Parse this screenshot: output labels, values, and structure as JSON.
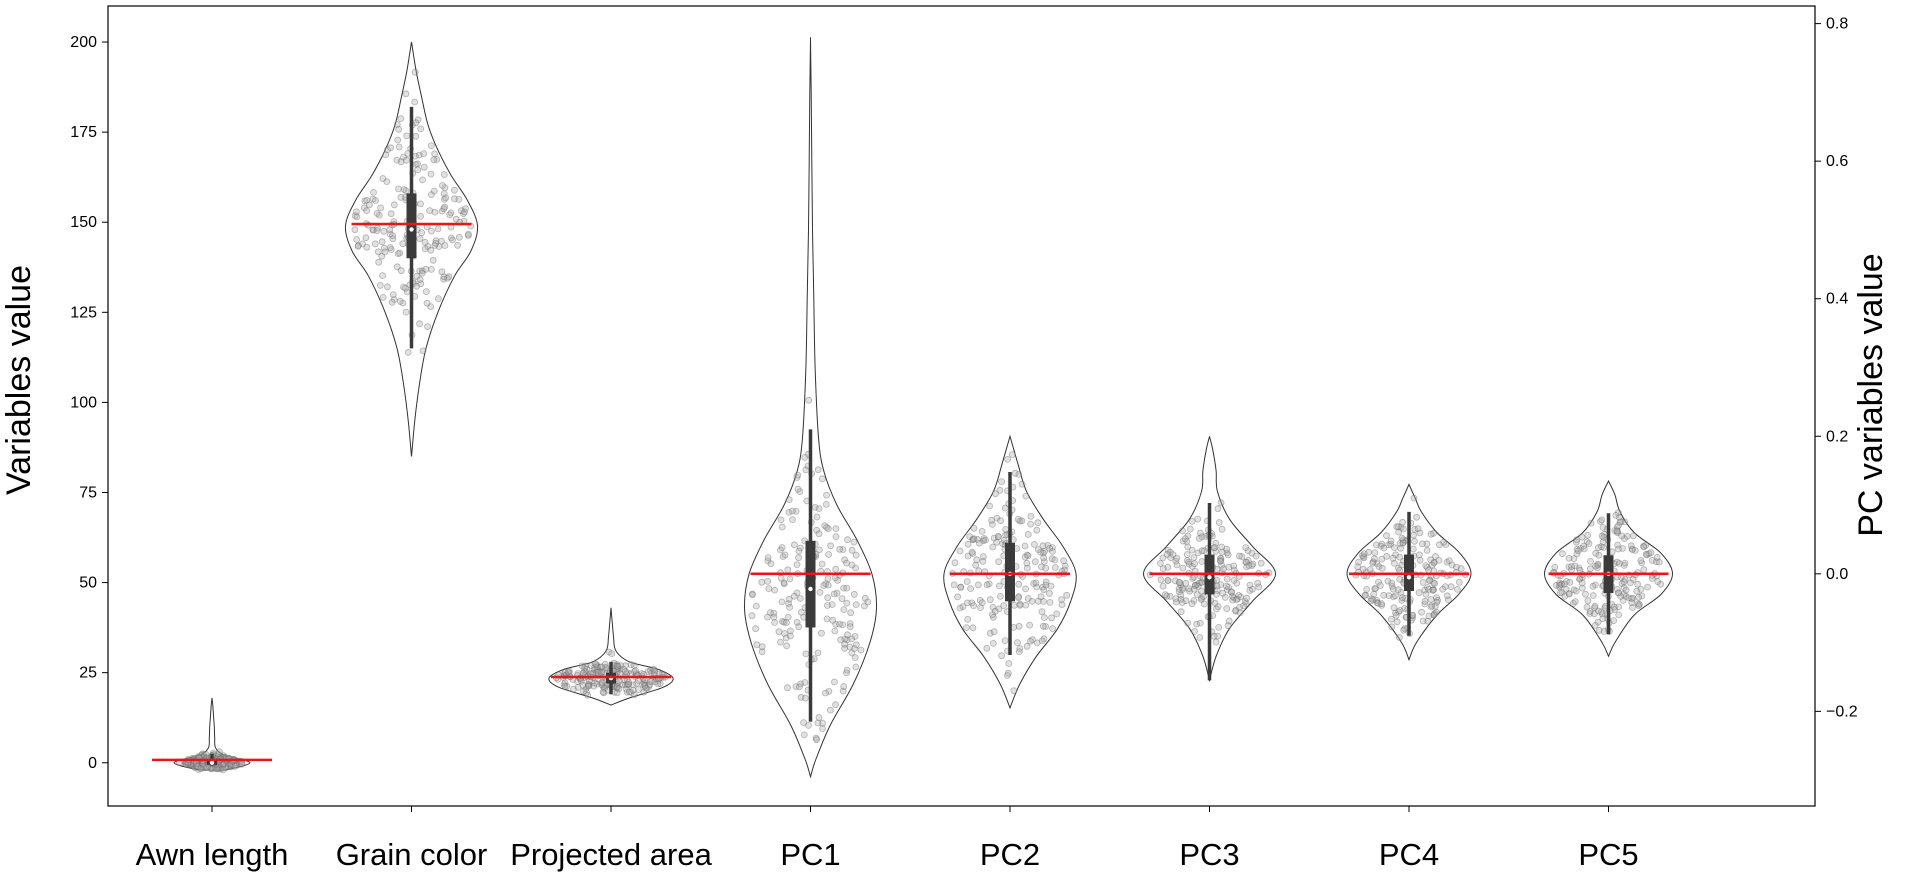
{
  "chart_data": {
    "type": "violin",
    "title": "",
    "xlabel": "",
    "ylabel": "Variables value",
    "y2label": "PC variables value",
    "ylim": [
      -12,
      210
    ],
    "y2lim": [
      -0.3376,
      0.8256
    ],
    "y_ticks": [
      0,
      25,
      50,
      75,
      100,
      125,
      150,
      175,
      200
    ],
    "y2_ticks": [
      -0.2,
      0.0,
      0.2,
      0.4,
      0.6,
      0.8
    ],
    "y_tick_labels": [
      "0",
      "25",
      "50",
      "75",
      "100",
      "125",
      "150",
      "175",
      "200"
    ],
    "y2_tick_labels": [
      "−0.2",
      "0.0",
      "0.2",
      "0.4",
      "0.6",
      "0.8"
    ],
    "categories": [
      "Awn length",
      "Grain color",
      "Projected area",
      "PC1",
      "PC2",
      "PC3",
      "PC4",
      "PC5"
    ],
    "axis_per_category": [
      "left",
      "left",
      "left",
      "right",
      "right",
      "right",
      "right",
      "right"
    ],
    "grid": false,
    "mean_line_color": "#e31a1c",
    "violin_outline_color": "#333333",
    "point_color": "#aaaaaa",
    "box_color": "#3a3a3a",
    "series": [
      {
        "name": "Awn length",
        "axis": "left",
        "min": -2,
        "max": 18,
        "spread": 38,
        "mean": 0.8,
        "median": 0,
        "q1": -0.6,
        "q3": 1.0,
        "whisker_low": -0.8,
        "whisker_high": 2.5,
        "profile": [
          [
            -2,
            0.35
          ],
          [
            0,
            1.0
          ],
          [
            2,
            0.35
          ],
          [
            4,
            0.1
          ],
          [
            7,
            0.07
          ],
          [
            10,
            0.06
          ],
          [
            13,
            0.04
          ],
          [
            16,
            0.02
          ],
          [
            18,
            0.0
          ]
        ]
      },
      {
        "name": "Grain color",
        "axis": "left",
        "min": 85,
        "max": 200,
        "spread": 66,
        "mean": 149.5,
        "median": 148,
        "q1": 140,
        "q3": 158,
        "whisker_low": 115,
        "whisker_high": 182,
        "profile": [
          [
            85,
            0.0
          ],
          [
            95,
            0.05
          ],
          [
            105,
            0.12
          ],
          [
            115,
            0.22
          ],
          [
            125,
            0.4
          ],
          [
            135,
            0.65
          ],
          [
            142,
            0.9
          ],
          [
            149,
            1.0
          ],
          [
            156,
            0.85
          ],
          [
            163,
            0.6
          ],
          [
            170,
            0.4
          ],
          [
            177,
            0.25
          ],
          [
            185,
            0.15
          ],
          [
            192,
            0.07
          ],
          [
            200,
            0.0
          ]
        ]
      },
      {
        "name": "Projected area",
        "axis": "left",
        "min": 16,
        "max": 43,
        "spread": 62,
        "mean": 23.8,
        "median": 23.5,
        "q1": 22,
        "q3": 25,
        "whisker_low": 19,
        "whisker_high": 28,
        "profile": [
          [
            16,
            0.0
          ],
          [
            18,
            0.3
          ],
          [
            21,
            0.85
          ],
          [
            23.5,
            1.0
          ],
          [
            26,
            0.75
          ],
          [
            28,
            0.3
          ],
          [
            31,
            0.08
          ],
          [
            35,
            0.04
          ],
          [
            39,
            0.02
          ],
          [
            43,
            0.0
          ]
        ]
      },
      {
        "name": "PC1",
        "axis": "right",
        "min": -0.295,
        "max": 0.78,
        "spread": 66,
        "mean": 0.0,
        "median": -0.022,
        "q1": -0.078,
        "q3": 0.048,
        "whisker_low": -0.215,
        "whisker_high": 0.21,
        "profile": [
          [
            -0.295,
            0.0
          ],
          [
            -0.27,
            0.08
          ],
          [
            -0.22,
            0.3
          ],
          [
            -0.16,
            0.65
          ],
          [
            -0.1,
            0.9
          ],
          [
            -0.05,
            1.0
          ],
          [
            0.0,
            0.93
          ],
          [
            0.05,
            0.7
          ],
          [
            0.1,
            0.4
          ],
          [
            0.15,
            0.2
          ],
          [
            0.2,
            0.12
          ],
          [
            0.3,
            0.07
          ],
          [
            0.4,
            0.05
          ],
          [
            0.5,
            0.03
          ],
          [
            0.6,
            0.02
          ],
          [
            0.7,
            0.01
          ],
          [
            0.78,
            0.0
          ]
        ]
      },
      {
        "name": "PC2",
        "axis": "right",
        "min": -0.195,
        "max": 0.2,
        "spread": 66,
        "mean": 0.0,
        "median": 0.0,
        "q1": -0.04,
        "q3": 0.045,
        "whisker_low": -0.118,
        "whisker_high": 0.148,
        "profile": [
          [
            -0.195,
            0.0
          ],
          [
            -0.16,
            0.15
          ],
          [
            -0.12,
            0.4
          ],
          [
            -0.08,
            0.72
          ],
          [
            -0.04,
            0.92
          ],
          [
            0.0,
            1.0
          ],
          [
            0.04,
            0.8
          ],
          [
            0.08,
            0.5
          ],
          [
            0.12,
            0.25
          ],
          [
            0.16,
            0.12
          ],
          [
            0.2,
            0.0
          ]
        ]
      },
      {
        "name": "PC3",
        "axis": "right",
        "min": -0.155,
        "max": 0.2,
        "spread": 66,
        "mean": 0.0,
        "median": -0.005,
        "q1": -0.03,
        "q3": 0.028,
        "whisker_low": -0.155,
        "whisker_high": 0.103,
        "profile": [
          [
            -0.155,
            0.0
          ],
          [
            -0.12,
            0.1
          ],
          [
            -0.08,
            0.3
          ],
          [
            -0.04,
            0.65
          ],
          [
            0.0,
            1.0
          ],
          [
            0.04,
            0.65
          ],
          [
            0.08,
            0.3
          ],
          [
            0.12,
            0.12
          ],
          [
            0.15,
            0.1
          ],
          [
            0.18,
            0.05
          ],
          [
            0.2,
            0.0
          ]
        ]
      },
      {
        "name": "PC4",
        "axis": "right",
        "min": -0.125,
        "max": 0.13,
        "spread": 62,
        "mean": 0.0,
        "median": -0.005,
        "q1": -0.025,
        "q3": 0.028,
        "whisker_low": -0.09,
        "whisker_high": 0.09,
        "profile": [
          [
            -0.125,
            0.0
          ],
          [
            -0.1,
            0.12
          ],
          [
            -0.06,
            0.45
          ],
          [
            -0.03,
            0.8
          ],
          [
            0.0,
            1.0
          ],
          [
            0.03,
            0.82
          ],
          [
            0.06,
            0.45
          ],
          [
            0.09,
            0.2
          ],
          [
            0.11,
            0.1
          ],
          [
            0.13,
            0.0
          ]
        ]
      },
      {
        "name": "PC5",
        "axis": "right",
        "min": -0.12,
        "max": 0.135,
        "spread": 64,
        "mean": 0.0,
        "median": 0.0,
        "q1": -0.028,
        "q3": 0.027,
        "whisker_low": -0.088,
        "whisker_high": 0.088,
        "profile": [
          [
            -0.12,
            0.0
          ],
          [
            -0.1,
            0.1
          ],
          [
            -0.06,
            0.4
          ],
          [
            -0.03,
            0.82
          ],
          [
            0.0,
            1.0
          ],
          [
            0.03,
            0.82
          ],
          [
            0.06,
            0.4
          ],
          [
            0.09,
            0.18
          ],
          [
            0.115,
            0.1
          ],
          [
            0.135,
            0.0
          ]
        ]
      }
    ]
  }
}
